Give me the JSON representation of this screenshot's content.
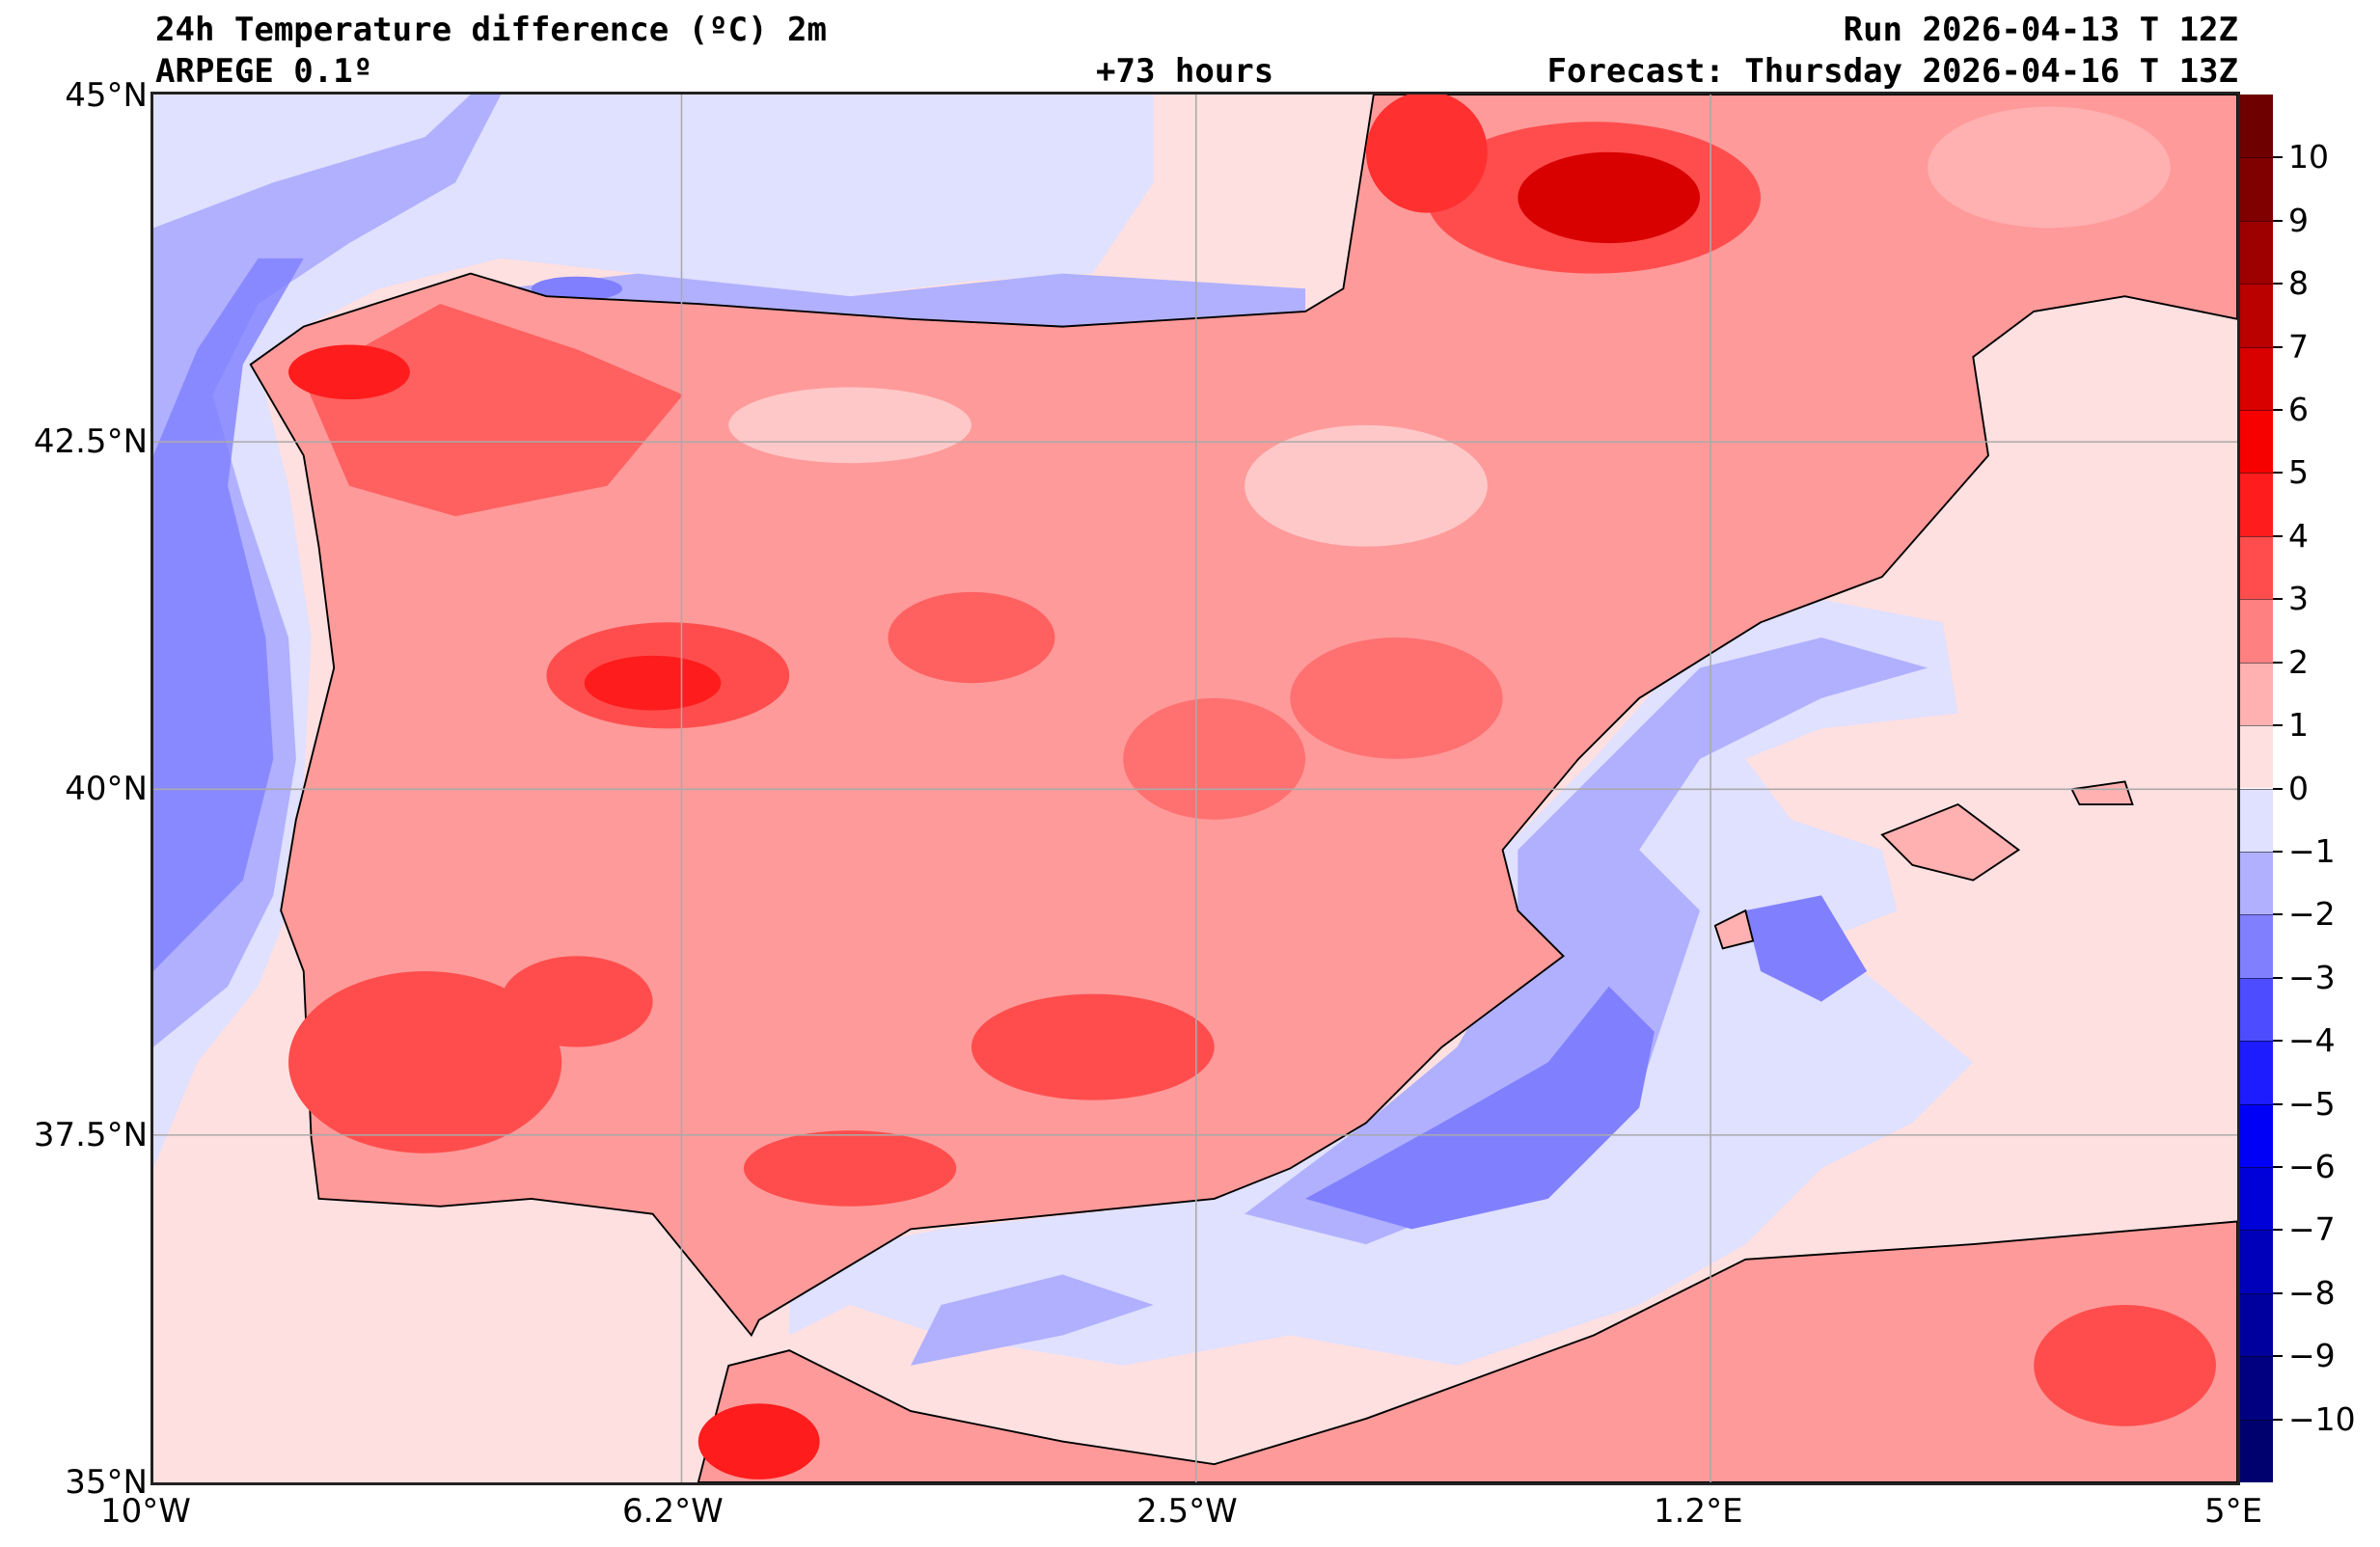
{
  "header": {
    "title": "24h Temperature difference (ºC) 2m",
    "model": "ARPEGE 0.1º",
    "lead_time": "+73 hours",
    "run": "Run 2026-04-13 T 12Z",
    "forecast": "Forecast: Thursday 2026-04-16 T 13Z"
  },
  "axes": {
    "lat_labels": [
      "45°N",
      "42.5°N",
      "40°N",
      "37.5°N",
      "35°N"
    ],
    "lon_labels": [
      "10°W",
      "6.2°W",
      "2.5°W",
      "1.2°E",
      "5°E"
    ]
  },
  "colorbar": {
    "range": [
      -11,
      11
    ],
    "tick_labels": [
      "10",
      "9",
      "8",
      "7",
      "6",
      "5",
      "4",
      "3",
      "2",
      "1",
      "0",
      "−1",
      "−2",
      "−3",
      "−4",
      "−5",
      "−6",
      "−7",
      "−8",
      "−9",
      "−10"
    ],
    "colors_top_to_bottom": [
      "#6e0000",
      "#800000",
      "#9e0000",
      "#bb0000",
      "#d90000",
      "#f70000",
      "#ff1c1c",
      "#ff4d4d",
      "#ff8080",
      "#ffb0b0",
      "#ffe0e0",
      "#e0e0ff",
      "#b0b0ff",
      "#8080ff",
      "#4d4dff",
      "#1c1cff",
      "#0000f7",
      "#0000d9",
      "#0000bb",
      "#00009e",
      "#000080",
      "#00006e"
    ]
  }
}
